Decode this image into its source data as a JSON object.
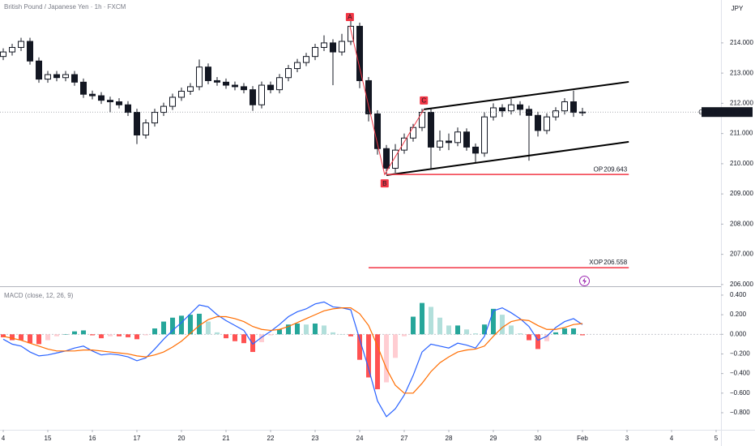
{
  "chart_data": [
    {
      "type": "candlestick",
      "title": "British Pound / Japanese Yen · 1h · FXCM",
      "currency": "JPY",
      "symbol": "GBPJPY",
      "color": "#131722",
      "x": [
        0,
        0.2,
        0.4,
        0.6,
        0.8,
        1,
        1.2,
        1.4,
        1.6,
        1.8,
        2,
        2.2,
        2.4,
        2.6,
        2.8,
        3,
        3.2,
        3.4,
        3.6,
        3.8,
        4,
        4.2,
        4.4,
        4.6,
        4.8,
        5,
        5.2,
        5.4,
        5.6,
        5.8,
        6,
        6.2,
        6.4,
        6.6,
        6.8,
        7,
        7.2,
        7.4,
        7.6,
        7.8,
        8,
        8.2,
        8.4,
        8.6,
        8.8,
        9,
        9.2,
        9.4,
        9.6,
        9.8,
        10,
        10.2,
        10.4,
        10.6,
        10.8,
        11,
        11.2,
        11.4,
        11.6,
        11.8,
        12,
        12.2,
        12.4,
        12.6,
        12.8,
        13
      ],
      "open": [
        213.55,
        213.7,
        213.85,
        214.05,
        213.4,
        212.8,
        212.95,
        212.85,
        212.95,
        212.7,
        212.3,
        212.25,
        212.1,
        212.05,
        211.95,
        211.7,
        210.95,
        211.35,
        211.7,
        211.9,
        212.2,
        212.4,
        212.55,
        213.2,
        212.75,
        212.7,
        212.6,
        212.55,
        212.45,
        211.95,
        212.6,
        212.45,
        212.85,
        213.15,
        213.35,
        213.55,
        213.85,
        214,
        213.7,
        214.05,
        214.55,
        212.75,
        211.65,
        210.5,
        209.85,
        210.45,
        210.85,
        211.2,
        211.7,
        210.55,
        210.75,
        210.7,
        211.05,
        210.55,
        210.35,
        211.55,
        211.85,
        211.75,
        211.95,
        211.8,
        211.6,
        211.1,
        211.55,
        211.75,
        212.05,
        211.7
      ],
      "high": [
        213.82,
        213.97,
        214.17,
        214.17,
        213.52,
        213.07,
        213.07,
        213.07,
        213.07,
        212.82,
        212.42,
        212.37,
        212.22,
        212.17,
        212.07,
        211.82,
        211.47,
        211.82,
        212.02,
        212.32,
        212.52,
        212.67,
        213.45,
        213.32,
        212.87,
        212.82,
        212.72,
        212.67,
        212.57,
        212.72,
        212.72,
        212.97,
        213.27,
        213.47,
        213.67,
        213.97,
        214.25,
        214.12,
        214.3,
        214.75,
        214.67,
        212.87,
        211.77,
        210.62,
        210.65,
        211,
        211.32,
        211.82,
        211.82,
        211.1,
        211,
        211.2,
        211.17,
        210.67,
        211.7,
        212,
        211.97,
        212.15,
        212.07,
        211.92,
        211.72,
        211.67,
        211.87,
        212.17,
        212.42,
        211.85
      ],
      "low": [
        213.43,
        213.58,
        213.73,
        213.28,
        212.68,
        212.68,
        212.73,
        212.73,
        212.58,
        212.18,
        212.13,
        211.98,
        211.7,
        211.83,
        211.58,
        210.65,
        210.83,
        211.23,
        211.58,
        211.78,
        212.08,
        212.28,
        212.43,
        212.63,
        212.58,
        212.48,
        212.43,
        212.33,
        211.75,
        211.83,
        212.33,
        212.33,
        212.73,
        213.03,
        213.23,
        213.43,
        213.73,
        212.6,
        213.58,
        213.93,
        212.5,
        211.4,
        210.3,
        209.64,
        209.7,
        210.33,
        210.73,
        211.08,
        209.8,
        210.43,
        210.45,
        210.58,
        210.43,
        210.05,
        210.23,
        211.43,
        211.55,
        211.63,
        211.6,
        210.1,
        210.9,
        210.98,
        211.43,
        211.63,
        211.55,
        211.58
      ],
      "close": [
        213.7,
        213.85,
        214.05,
        213.4,
        212.8,
        212.95,
        212.85,
        212.95,
        212.7,
        212.3,
        212.25,
        212.1,
        212.05,
        211.95,
        211.7,
        210.95,
        211.35,
        211.7,
        211.9,
        212.2,
        212.4,
        212.55,
        213.2,
        212.75,
        212.7,
        212.6,
        212.55,
        212.45,
        211.95,
        212.6,
        212.45,
        212.85,
        213.15,
        213.35,
        213.55,
        213.85,
        214,
        213.7,
        214.05,
        214.55,
        212.75,
        211.65,
        210.5,
        209.85,
        210.45,
        210.85,
        211.2,
        211.7,
        210.55,
        210.75,
        210.7,
        211.05,
        210.55,
        210.35,
        211.55,
        211.85,
        211.75,
        211.95,
        211.8,
        211.6,
        211.1,
        211.55,
        211.75,
        212.05,
        211.7,
        211.71
      ],
      "xlim": [
        -0.073,
        16.109
      ],
      "ylim": [
        205.97,
        215.42
      ],
      "yticks": [
        {
          "value": 214,
          "label": "214.000"
        },
        {
          "value": 213,
          "label": "213.000"
        },
        {
          "value": 212,
          "label": "212.000"
        },
        {
          "value": 211,
          "label": "211.000"
        },
        {
          "value": 210,
          "label": "210.000"
        },
        {
          "value": 209,
          "label": "209.000"
        },
        {
          "value": 208,
          "label": "208.000"
        },
        {
          "value": 207,
          "label": "207.000"
        },
        {
          "value": 206,
          "label": "206.000"
        }
      ],
      "last_price": {
        "value": 211.71,
        "label": "211.710"
      },
      "drawings": {
        "wave": {
          "color": "#f23645",
          "labels": [
            "A",
            "B",
            "C"
          ],
          "x": [
            7.78,
            8.56,
            9.44
          ],
          "y": [
            214.56,
            209.643,
            211.8
          ]
        },
        "channel": {
          "color": "#000000",
          "lines": [
            {
              "x": [
                9.44,
                14.04
              ],
              "y": [
                211.8,
                212.71
              ]
            },
            {
              "x": [
                8.6,
                14.04
              ],
              "y": [
                209.62,
                210.725
              ]
            }
          ]
        },
        "levels": {
          "color": "#f23645",
          "lines": [
            {
              "label": "OP",
              "value": 209.643,
              "x": [
                8.6,
                14.04
              ]
            },
            {
              "label": "XOP",
              "value": 206.558,
              "x": [
                8.2,
                14.04
              ]
            }
          ]
        }
      }
    },
    {
      "type": "macd",
      "title": "MACD (close, 12, 26, 9)",
      "x": [
        0,
        0.2,
        0.4,
        0.6,
        0.8,
        1,
        1.2,
        1.4,
        1.6,
        1.8,
        2,
        2.2,
        2.4,
        2.6,
        2.8,
        3,
        3.2,
        3.4,
        3.6,
        3.8,
        4,
        4.2,
        4.4,
        4.6,
        4.8,
        5,
        5.2,
        5.4,
        5.6,
        5.8,
        6,
        6.2,
        6.4,
        6.6,
        6.8,
        7,
        7.2,
        7.4,
        7.6,
        7.8,
        8,
        8.2,
        8.4,
        8.6,
        8.8,
        9,
        9.2,
        9.4,
        9.6,
        9.8,
        10,
        10.2,
        10.4,
        10.6,
        10.8,
        11,
        11.2,
        11.4,
        11.6,
        11.8,
        12,
        12.2,
        12.4,
        12.6,
        12.8,
        13
      ],
      "series": [
        {
          "color": "#2962ff",
          "values": [
            -0.05,
            -0.1,
            -0.12,
            -0.18,
            -0.22,
            -0.21,
            -0.19,
            -0.17,
            -0.14,
            -0.12,
            -0.17,
            -0.21,
            -0.2,
            -0.21,
            -0.23,
            -0.27,
            -0.24,
            -0.15,
            -0.05,
            0.04,
            0.12,
            0.21,
            0.3,
            0.28,
            0.2,
            0.14,
            0.09,
            0.04,
            -0.1,
            -0.03,
            0.03,
            0.1,
            0.18,
            0.23,
            0.26,
            0.31,
            0.33,
            0.28,
            0.27,
            0.25,
            -0.05,
            -0.35,
            -0.68,
            -0.84,
            -0.76,
            -0.62,
            -0.42,
            -0.18,
            -0.1,
            -0.12,
            -0.14,
            -0.09,
            -0.11,
            -0.14,
            -0.02,
            0.24,
            0.27,
            0.22,
            0.16,
            0.08,
            -0.06,
            -0.02,
            0.07,
            0.13,
            0.16,
            0.1
          ]
        },
        {
          "color": "#ff6d00",
          "values": [
            -0.02,
            -0.04,
            -0.06,
            -0.09,
            -0.12,
            -0.15,
            -0.17,
            -0.17,
            -0.17,
            -0.16,
            -0.16,
            -0.17,
            -0.18,
            -0.19,
            -0.2,
            -0.22,
            -0.23,
            -0.21,
            -0.18,
            -0.13,
            -0.07,
            0.01,
            0.09,
            0.15,
            0.18,
            0.18,
            0.16,
            0.13,
            0.08,
            0.05,
            0.04,
            0.05,
            0.08,
            0.12,
            0.16,
            0.2,
            0.24,
            0.26,
            0.27,
            0.27,
            0.21,
            0.09,
            -0.12,
            -0.35,
            -0.52,
            -0.6,
            -0.6,
            -0.5,
            -0.38,
            -0.29,
            -0.23,
            -0.18,
            -0.16,
            -0.15,
            -0.12,
            -0.02,
            0.07,
            0.13,
            0.15,
            0.14,
            0.09,
            0.05,
            0.05,
            0.07,
            0.1,
            0.11
          ]
        }
      ],
      "histogram": {
        "colors": [
          "#26a69a",
          "#b2dfdb",
          "#ffcdd2",
          "#ff5252"
        ],
        "values": [
          -0.03,
          -0.06,
          -0.06,
          -0.09,
          -0.1,
          -0.06,
          -0.02,
          0,
          0.03,
          0.04,
          -0.01,
          -0.04,
          -0.02,
          -0.02,
          -0.03,
          -0.05,
          -0.01,
          0.06,
          0.13,
          0.17,
          0.19,
          0.2,
          0.21,
          0.13,
          0.02,
          -0.04,
          -0.07,
          -0.09,
          -0.18,
          -0.08,
          -0.01,
          0.05,
          0.1,
          0.11,
          0.1,
          0.11,
          0.09,
          0.02,
          0,
          -0.02,
          -0.26,
          -0.44,
          -0.56,
          -0.49,
          -0.24,
          -0.02,
          0.18,
          0.32,
          0.28,
          0.17,
          0.09,
          0.09,
          0.05,
          0.01,
          0.1,
          0.26,
          0.2,
          0.09,
          0.01,
          -0.06,
          -0.15,
          -0.07,
          0.02,
          0.06,
          0.06,
          -0.01
        ]
      },
      "xlim": [
        -0.073,
        16.109
      ],
      "ylim": [
        -0.974,
        0.474
      ],
      "yticks": [
        {
          "value": 0.4,
          "label": "0.400"
        },
        {
          "value": 0.2,
          "label": "0.200"
        },
        {
          "value": 0,
          "label": "0.000"
        },
        {
          "value": -0.2,
          "label": "−0.200"
        },
        {
          "value": -0.4,
          "label": "−0.400"
        },
        {
          "value": -0.6,
          "label": "−0.600"
        },
        {
          "value": -0.8,
          "label": "−0.800"
        }
      ],
      "xticks": [
        {
          "value": 0,
          "label": "4"
        },
        {
          "value": 1,
          "label": "15"
        },
        {
          "value": 2,
          "label": "16"
        },
        {
          "value": 3,
          "label": "17"
        },
        {
          "value": 4,
          "label": "20"
        },
        {
          "value": 5,
          "label": "21"
        },
        {
          "value": 6,
          "label": "22"
        },
        {
          "value": 7,
          "label": "23"
        },
        {
          "value": 8,
          "label": "24"
        },
        {
          "value": 9,
          "label": "27"
        },
        {
          "value": 10,
          "label": "28"
        },
        {
          "value": 11,
          "label": "29"
        },
        {
          "value": 12,
          "label": "30"
        },
        {
          "value": 13,
          "label": "Feb"
        },
        {
          "value": 14,
          "label": "3"
        },
        {
          "value": 15,
          "label": "4"
        },
        {
          "value": 16,
          "label": "5"
        }
      ]
    }
  ]
}
